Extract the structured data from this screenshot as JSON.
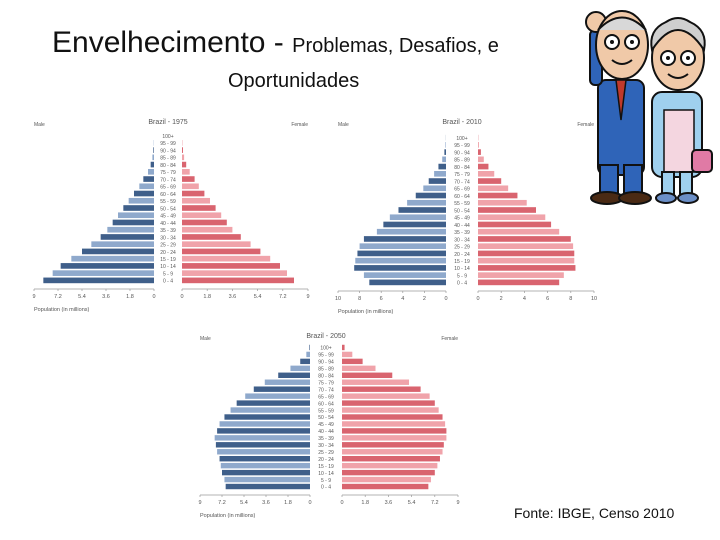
{
  "slide": {
    "title_part1": "Envelhecimento - ",
    "title_part2": "Problemas, Desafios, e",
    "title_line2": "Oportunidades",
    "source": "Fonte: IBGE, Censo 2010"
  },
  "colors": {
    "male_dark": "#3f5f8a",
    "male_light": "#8fa9cc",
    "female_dark": "#d9646f",
    "female_light": "#f0a3aa",
    "axis": "#9a9a9a"
  },
  "chart_data": [
    {
      "type": "bar",
      "title": "Brazil - 1975",
      "left_label": "Male",
      "right_label": "Female",
      "xlabel": "Population (in millions)",
      "xticks": [
        "9",
        "7.2",
        "5.4",
        "3.6",
        "1.8",
        "0",
        "0",
        "1.8",
        "3.6",
        "5.4",
        "7.2",
        "9"
      ],
      "xlim": [
        -9,
        9
      ],
      "age_groups": [
        "100+",
        "95 - 99",
        "90 - 94",
        "85 - 89",
        "80 - 84",
        "75 - 79",
        "70 - 74",
        "65 - 69",
        "60 - 64",
        "55 - 59",
        "50 - 54",
        "45 - 49",
        "40 - 44",
        "35 - 39",
        "30 - 34",
        "25 - 29",
        "20 - 24",
        "15 - 19",
        "10 - 14",
        "5 - 9",
        "0 - 4"
      ],
      "series": [
        {
          "name": "Male",
          "values": [
            0,
            0.02,
            0.05,
            0.12,
            0.25,
            0.45,
            0.8,
            1.1,
            1.5,
            1.9,
            2.3,
            2.7,
            3.1,
            3.5,
            4.0,
            4.7,
            5.4,
            6.2,
            7.0,
            7.6,
            8.3
          ]
        },
        {
          "name": "Female",
          "values": [
            0,
            0.03,
            0.07,
            0.15,
            0.3,
            0.55,
            0.9,
            1.2,
            1.6,
            2.0,
            2.4,
            2.8,
            3.2,
            3.6,
            4.2,
            4.9,
            5.6,
            6.3,
            7.0,
            7.5,
            8.0
          ]
        }
      ]
    },
    {
      "type": "bar",
      "title": "Brazil - 2010",
      "left_label": "Male",
      "right_label": "Female",
      "xlabel": "Population (in millions)",
      "xticks": [
        "10",
        "8",
        "6",
        "4",
        "2",
        "0",
        "0",
        "2",
        "4",
        "6",
        "8",
        "10"
      ],
      "xlim": [
        -10,
        10
      ],
      "age_groups": [
        "100+",
        "95 - 99",
        "90 - 94",
        "85 - 89",
        "80 - 84",
        "75 - 79",
        "70 - 74",
        "65 - 69",
        "60 - 64",
        "55 - 59",
        "50 - 54",
        "45 - 49",
        "40 - 44",
        "35 - 39",
        "30 - 34",
        "25 - 29",
        "20 - 24",
        "15 - 19",
        "10 - 14",
        "5 - 9",
        "0 - 4"
      ],
      "series": [
        {
          "name": "Male",
          "values": [
            0.01,
            0.05,
            0.15,
            0.35,
            0.7,
            1.1,
            1.6,
            2.1,
            2.8,
            3.6,
            4.4,
            5.2,
            5.8,
            6.4,
            7.6,
            8.0,
            8.2,
            8.4,
            8.5,
            7.6,
            7.1
          ]
        },
        {
          "name": "Female",
          "values": [
            0.02,
            0.08,
            0.25,
            0.5,
            0.9,
            1.4,
            2.0,
            2.6,
            3.4,
            4.2,
            5.0,
            5.8,
            6.3,
            7.0,
            8.0,
            8.2,
            8.3,
            8.3,
            8.4,
            7.4,
            7.0
          ]
        }
      ]
    },
    {
      "type": "bar",
      "title": "Brazil - 2050",
      "left_label": "Male",
      "right_label": "Female",
      "xlabel": "Population (in millions)",
      "xticks": [
        "9",
        "7.2",
        "5.4",
        "3.6",
        "1.8",
        "0",
        "0",
        "1.8",
        "3.6",
        "5.4",
        "7.2",
        "9"
      ],
      "xlim": [
        -9,
        9
      ],
      "age_groups": [
        "100+",
        "95 - 99",
        "90 - 94",
        "85 - 89",
        "80 - 84",
        "75 - 79",
        "70 - 74",
        "65 - 69",
        "60 - 64",
        "55 - 59",
        "50 - 54",
        "45 - 49",
        "40 - 44",
        "35 - 39",
        "30 - 34",
        "25 - 29",
        "20 - 24",
        "15 - 19",
        "10 - 14",
        "5 - 9",
        "0 - 4"
      ],
      "series": [
        {
          "name": "Male",
          "values": [
            0.05,
            0.3,
            0.8,
            1.6,
            2.6,
            3.7,
            4.6,
            5.3,
            6.0,
            6.5,
            7.0,
            7.4,
            7.6,
            7.8,
            7.7,
            7.6,
            7.4,
            7.3,
            7.2,
            7.0,
            6.9
          ]
        },
        {
          "name": "Female",
          "values": [
            0.2,
            0.8,
            1.6,
            2.6,
            3.9,
            5.2,
            6.1,
            6.8,
            7.2,
            7.5,
            7.8,
            8.0,
            8.1,
            8.1,
            7.9,
            7.8,
            7.6,
            7.4,
            7.2,
            6.9,
            6.7
          ]
        }
      ]
    }
  ]
}
